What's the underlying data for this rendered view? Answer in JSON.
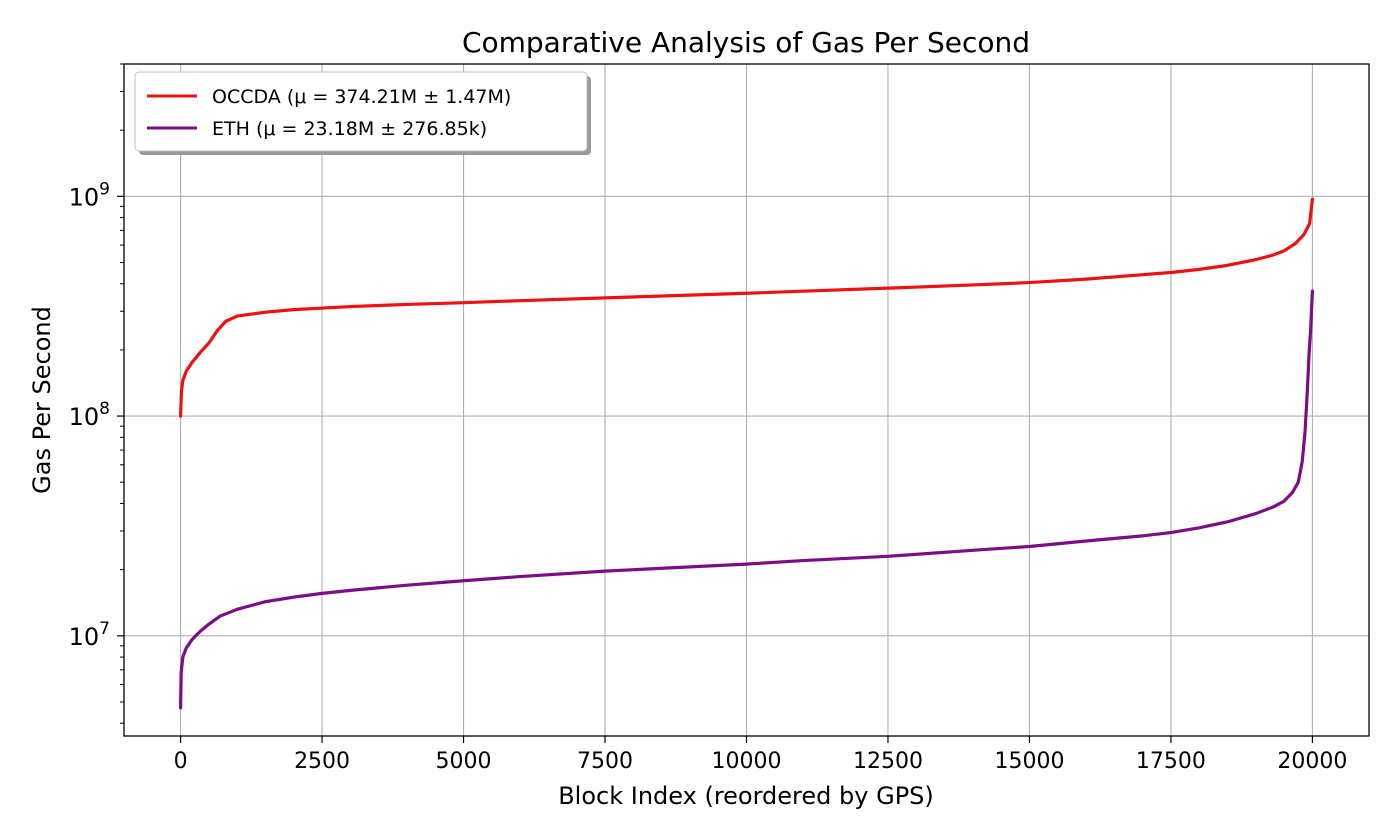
{
  "chart_data": {
    "type": "line",
    "title": "Comparative Analysis of Gas Per Second",
    "xlabel": "Block Index (reordered by GPS)",
    "ylabel": "Gas Per Second",
    "xlim": [
      -1000,
      21000
    ],
    "ylim": [
      3500000.0,
      4000000000.0
    ],
    "yscale": "log",
    "grid": true,
    "legend_position": "top-left",
    "x_ticks": [
      {
        "value": 0,
        "label": "0"
      },
      {
        "value": 2500,
        "label": "2500"
      },
      {
        "value": 5000,
        "label": "5000"
      },
      {
        "value": 7500,
        "label": "7500"
      },
      {
        "value": 10000,
        "label": "10000"
      },
      {
        "value": 12500,
        "label": "12500"
      },
      {
        "value": 15000,
        "label": "15000"
      },
      {
        "value": 17500,
        "label": "17500"
      },
      {
        "value": 20000,
        "label": "20000"
      }
    ],
    "y_ticks": [
      {
        "value": 10000000,
        "base": "10",
        "exp": "7"
      },
      {
        "value": 100000000,
        "base": "10",
        "exp": "8"
      },
      {
        "value": 1000000000,
        "base": "10",
        "exp": "9"
      }
    ],
    "series": [
      {
        "name": "OCCDA (μ = 374.21M ± 1.47M)",
        "color": "#ee1111",
        "points": [
          [
            0,
            100000000.0
          ],
          [
            15,
            130000000.0
          ],
          [
            40,
            145000000.0
          ],
          [
            100,
            160000000.0
          ],
          [
            200,
            175000000.0
          ],
          [
            350,
            195000000.0
          ],
          [
            500,
            215000000.0
          ],
          [
            650,
            245000000.0
          ],
          [
            800,
            270000000.0
          ],
          [
            1000,
            285000000.0
          ],
          [
            1500,
            297000000.0
          ],
          [
            2000,
            305000000.0
          ],
          [
            3000,
            315000000.0
          ],
          [
            4000,
            322000000.0
          ],
          [
            5000,
            328000000.0
          ],
          [
            6000,
            335000000.0
          ],
          [
            7500,
            345000000.0
          ],
          [
            9000,
            355000000.0
          ],
          [
            10000,
            362000000.0
          ],
          [
            11000,
            370000000.0
          ],
          [
            12500,
            382000000.0
          ],
          [
            14000,
            395000000.0
          ],
          [
            15000,
            405000000.0
          ],
          [
            16000,
            420000000.0
          ],
          [
            17000,
            440000000.0
          ],
          [
            17500,
            450000000.0
          ],
          [
            18000,
            465000000.0
          ],
          [
            18500,
            485000000.0
          ],
          [
            19000,
            515000000.0
          ],
          [
            19300,
            540000000.0
          ],
          [
            19500,
            565000000.0
          ],
          [
            19700,
            610000000.0
          ],
          [
            19850,
            670000000.0
          ],
          [
            19950,
            750000000.0
          ],
          [
            20000,
            970000000.0
          ]
        ]
      },
      {
        "name": "ETH (μ = 23.18M ± 276.85k)",
        "color": "#7b0e85",
        "points": [
          [
            0,
            4700000.0
          ],
          [
            10,
            6800000.0
          ],
          [
            40,
            8000000.0
          ],
          [
            100,
            8800000.0
          ],
          [
            200,
            9600000.0
          ],
          [
            350,
            10500000.0
          ],
          [
            500,
            11300000.0
          ],
          [
            700,
            12300000.0
          ],
          [
            1000,
            13200000.0
          ],
          [
            1500,
            14300000.0
          ],
          [
            2000,
            15000000.0
          ],
          [
            2500,
            15600000.0
          ],
          [
            3000,
            16100000.0
          ],
          [
            4000,
            17000000.0
          ],
          [
            5000,
            17800000.0
          ],
          [
            6000,
            18600000.0
          ],
          [
            7500,
            19700000.0
          ],
          [
            9000,
            20600000.0
          ],
          [
            10000,
            21200000.0
          ],
          [
            11000,
            22000000.0
          ],
          [
            12500,
            23000000.0
          ],
          [
            14000,
            24500000.0
          ],
          [
            15000,
            25500000.0
          ],
          [
            16000,
            27000000.0
          ],
          [
            17000,
            28500000.0
          ],
          [
            17500,
            29500000.0
          ],
          [
            18000,
            31000000.0
          ],
          [
            18500,
            33000000.0
          ],
          [
            19000,
            36000000.0
          ],
          [
            19300,
            38500000.0
          ],
          [
            19500,
            41000000.0
          ],
          [
            19650,
            45000000.0
          ],
          [
            19750,
            50000000.0
          ],
          [
            19820,
            62000000.0
          ],
          [
            19870,
            85000000.0
          ],
          [
            19910,
            130000000.0
          ],
          [
            19940,
            190000000.0
          ],
          [
            19970,
            250000000.0
          ],
          [
            20000,
            370000000.0
          ]
        ]
      }
    ]
  }
}
